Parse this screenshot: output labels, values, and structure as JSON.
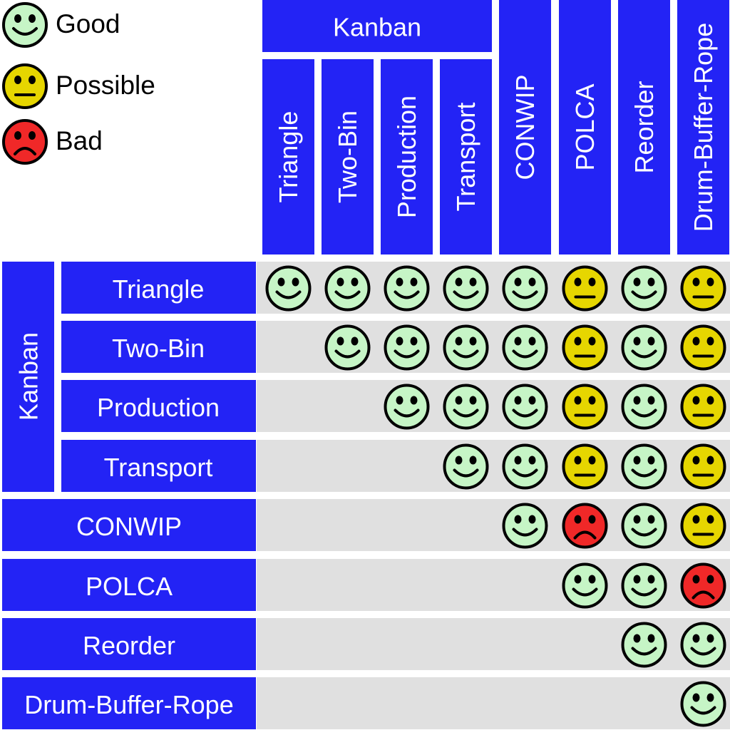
{
  "legend": {
    "good": "Good",
    "possible": "Possible",
    "bad": "Bad"
  },
  "columns": {
    "group_label": "Kanban",
    "kanban_items": [
      "Triangle",
      "Two-Bin",
      "Production",
      "Transport"
    ],
    "others": [
      "CONWIP",
      "POLCA",
      "Reorder",
      "Drum-Buffer-Rope"
    ]
  },
  "rows": {
    "group_label": "Kanban",
    "kanban_items": [
      "Triangle",
      "Two-Bin",
      "Production",
      "Transport"
    ],
    "others": [
      "CONWIP",
      "POLCA",
      "Reorder",
      "Drum-Buffer-Rope"
    ]
  },
  "ratings": [
    [
      "good",
      "good",
      "good",
      "good",
      "good",
      "possible",
      "good",
      "possible"
    ],
    [
      null,
      "good",
      "good",
      "good",
      "good",
      "possible",
      "good",
      "possible"
    ],
    [
      null,
      null,
      "good",
      "good",
      "good",
      "possible",
      "good",
      "possible"
    ],
    [
      null,
      null,
      null,
      "good",
      "good",
      "possible",
      "good",
      "possible"
    ],
    [
      null,
      null,
      null,
      null,
      "good",
      "bad",
      "good",
      "possible"
    ],
    [
      null,
      null,
      null,
      null,
      null,
      "good",
      "good",
      "bad"
    ],
    [
      null,
      null,
      null,
      null,
      null,
      null,
      "good",
      "good"
    ],
    [
      null,
      null,
      null,
      null,
      null,
      null,
      null,
      "good"
    ]
  ],
  "colors": {
    "header_blue": "#2323f5",
    "row_bg": "#e0e0e0",
    "good": "#c6f5c6",
    "possible": "#e6d600",
    "bad": "#f02828",
    "outline": "#000000"
  }
}
